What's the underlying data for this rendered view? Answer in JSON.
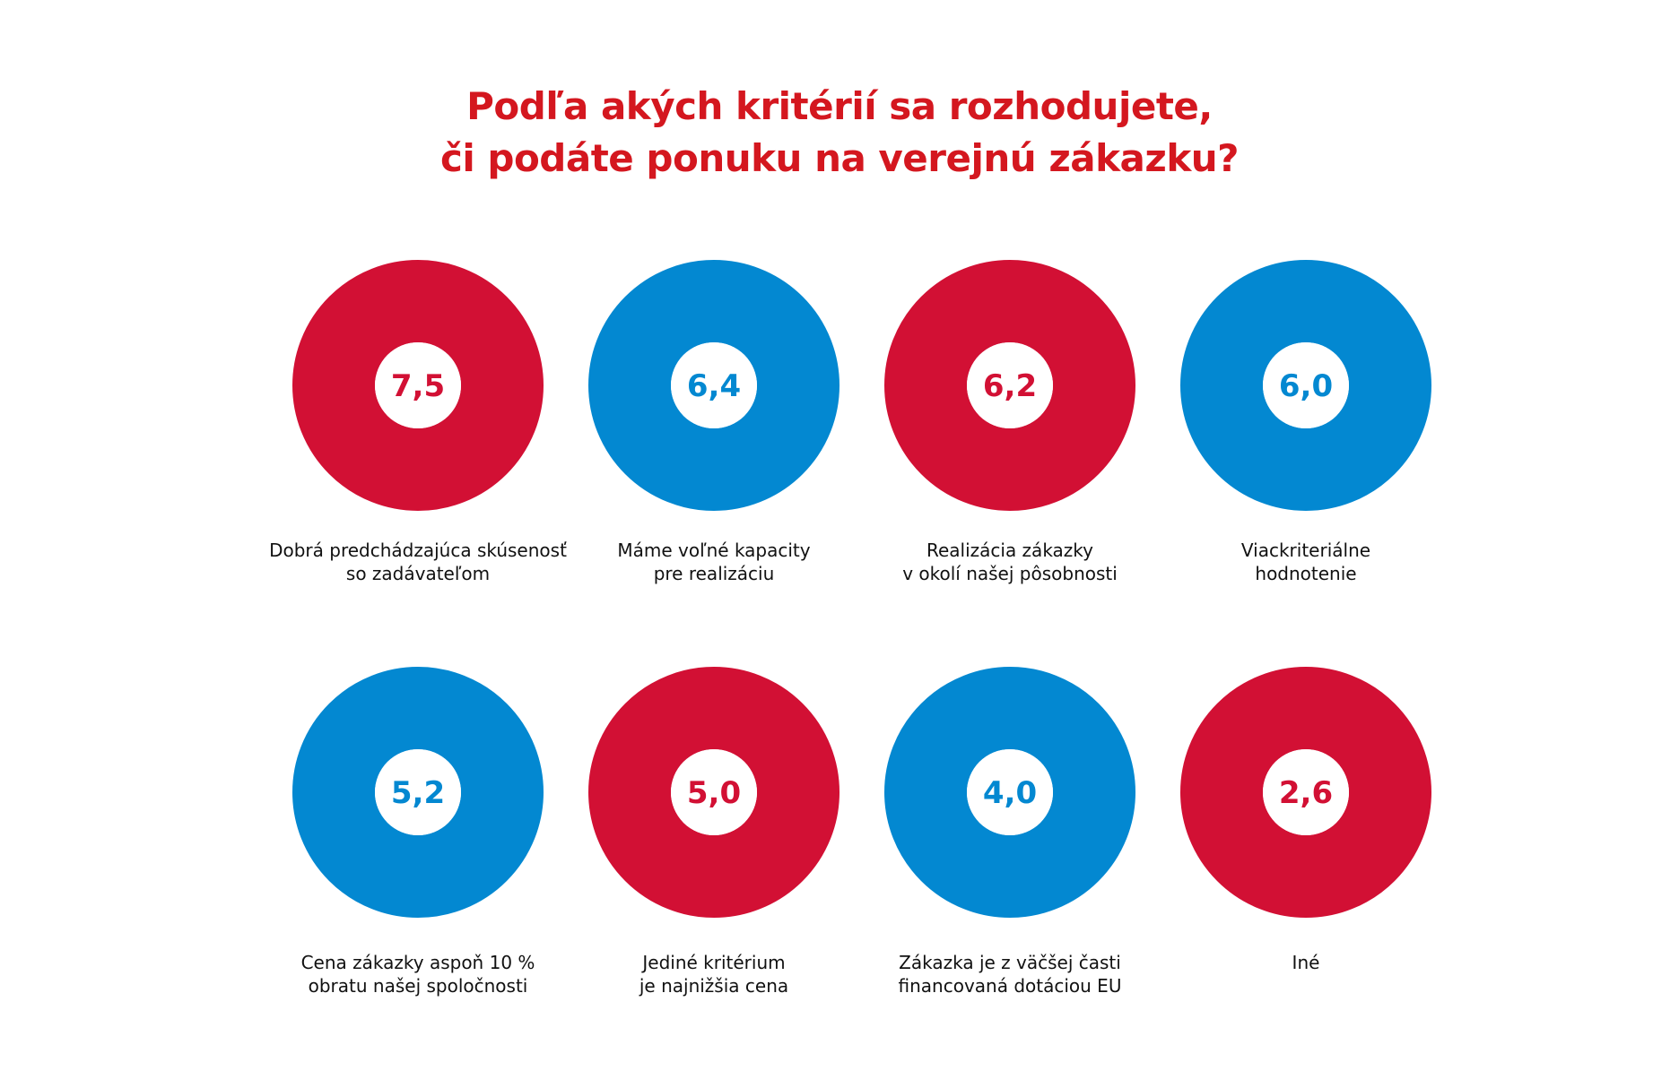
{
  "title": {
    "line1": "Podľa akých kritérií sa rozhodujete,",
    "line2": "či podáte ponuku na verejnú zákazku?"
  },
  "colors": {
    "red": "#d21034",
    "blue": "#0388d1",
    "title": "#d4171f"
  },
  "chart_data": {
    "type": "donut",
    "title": "Podľa akých kritérií sa rozhodujete, či podáte ponuku na verejnú zákazku?",
    "items": [
      {
        "value": "7,5",
        "label1": "Dobrá predchádzajúca skúsenosť",
        "label2": "so zadávateľom",
        "color": "red"
      },
      {
        "value": "6,4",
        "label1": "Máme voľné kapacity",
        "label2": "pre realizáciu",
        "color": "blue"
      },
      {
        "value": "6,2",
        "label1": "Realizácia zákazky",
        "label2": "v okolí našej pôsobnosti",
        "color": "red"
      },
      {
        "value": "6,0",
        "label1": "Viackriteriálne",
        "label2": "hodnotenie",
        "color": "blue"
      },
      {
        "value": "5,2",
        "label1": "Cena zákazky aspoň 10 %",
        "label2": "obratu našej spoločnosti",
        "color": "blue"
      },
      {
        "value": "5,0",
        "label1": "Jediné kritérium",
        "label2": "je najnižšia cena",
        "color": "red"
      },
      {
        "value": "4,0",
        "label1": "Zákazka je z väčšej časti",
        "label2": "financovaná dotáciou EU",
        "color": "blue"
      },
      {
        "value": "2,6",
        "label1": "Iné",
        "label2": "",
        "color": "red"
      }
    ]
  }
}
